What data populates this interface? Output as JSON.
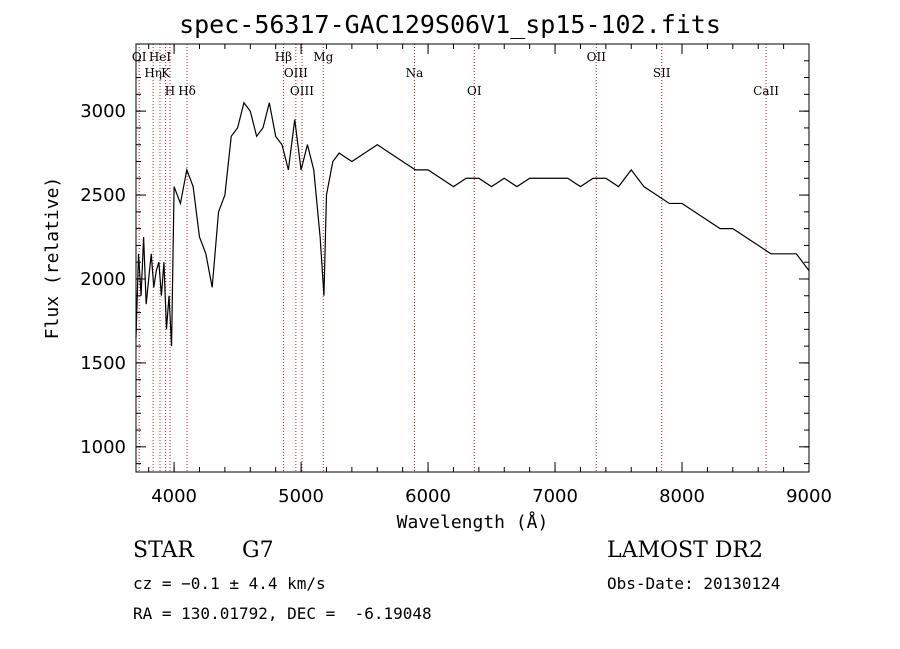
{
  "title": "spec-56317-GAC129S06V1_sp15-102.fits",
  "footer": {
    "object_class": "STAR",
    "subclass": "G7",
    "survey": "LAMOST DR2",
    "cz_line": "cz = −0.1 ± 4.4 km/s",
    "obs_date_line": "Obs-Date: 20130124",
    "radec_line": "RA = 130.01792, DEC =  -6.19048"
  },
  "chart_data": {
    "type": "line",
    "title": "spec-56317-GAC129S06V1_sp15-102.fits",
    "xlabel": "Wavelength (Å)",
    "ylabel": "Flux (relative)",
    "xlim": [
      3700,
      9000
    ],
    "ylim": [
      850,
      3400
    ],
    "x_ticks": [
      4000,
      5000,
      6000,
      7000,
      8000,
      9000
    ],
    "y_ticks": [
      1000,
      1500,
      2000,
      2500,
      3000
    ],
    "grid": false,
    "series": [
      {
        "color": "#000000",
        "x": [
          3700,
          3720,
          3740,
          3760,
          3780,
          3800,
          3820,
          3840,
          3860,
          3880,
          3900,
          3920,
          3940,
          3960,
          3980,
          4000,
          4050,
          4100,
          4150,
          4200,
          4250,
          4300,
          4350,
          4400,
          4450,
          4500,
          4550,
          4600,
          4650,
          4700,
          4750,
          4800,
          4850,
          4900,
          4950,
          5000,
          5050,
          5100,
          5150,
          5180,
          5200,
          5250,
          5300,
          5400,
          5500,
          5600,
          5700,
          5800,
          5900,
          6000,
          6100,
          6200,
          6300,
          6400,
          6500,
          6600,
          6700,
          6800,
          6900,
          7000,
          7100,
          7200,
          7300,
          7400,
          7500,
          7600,
          7700,
          7800,
          7900,
          8000,
          8100,
          8200,
          8300,
          8400,
          8500,
          8600,
          8700,
          8800,
          8900,
          9000
        ],
        "y": [
          1650,
          2150,
          1900,
          2250,
          1850,
          2000,
          2150,
          1950,
          2050,
          2100,
          1900,
          2100,
          1700,
          1900,
          1600,
          2550,
          2450,
          2650,
          2550,
          2250,
          2150,
          1950,
          2400,
          2500,
          2850,
          2900,
          3050,
          3000,
          2850,
          2900,
          3050,
          2850,
          2800,
          2650,
          2950,
          2650,
          2800,
          2650,
          2250,
          1900,
          2500,
          2700,
          2750,
          2700,
          2750,
          2800,
          2750,
          2700,
          2650,
          2650,
          2600,
          2550,
          2600,
          2600,
          2550,
          2600,
          2550,
          2600,
          2600,
          2600,
          2600,
          2550,
          2600,
          2600,
          2550,
          2650,
          2550,
          2500,
          2450,
          2450,
          2400,
          2350,
          2300,
          2300,
          2250,
          2200,
          2150,
          2150,
          2150,
          2050
        ]
      }
    ],
    "lines": [
      {
        "label": "OI",
        "x": 3725
      },
      {
        "label": "Hη",
        "x": 3835
      },
      {
        "label": "H",
        "x": 3968
      },
      {
        "label": "HeI",
        "x": 3889
      },
      {
        "label": "K",
        "x": 3933
      },
      {
        "label": "Hδ",
        "x": 4102
      },
      {
        "label": "Hβ",
        "x": 4861
      },
      {
        "label": "OIII",
        "x": 4959
      },
      {
        "label": "OIII",
        "x": 5007
      },
      {
        "label": "Mg",
        "x": 5175
      },
      {
        "label": "Na",
        "x": 5893
      },
      {
        "label": "OI",
        "x": 6364
      },
      {
        "label": "OII",
        "x": 7325
      },
      {
        "label": "SII",
        "x": 7840
      },
      {
        "label": "CaII",
        "x": 8662
      }
    ]
  }
}
